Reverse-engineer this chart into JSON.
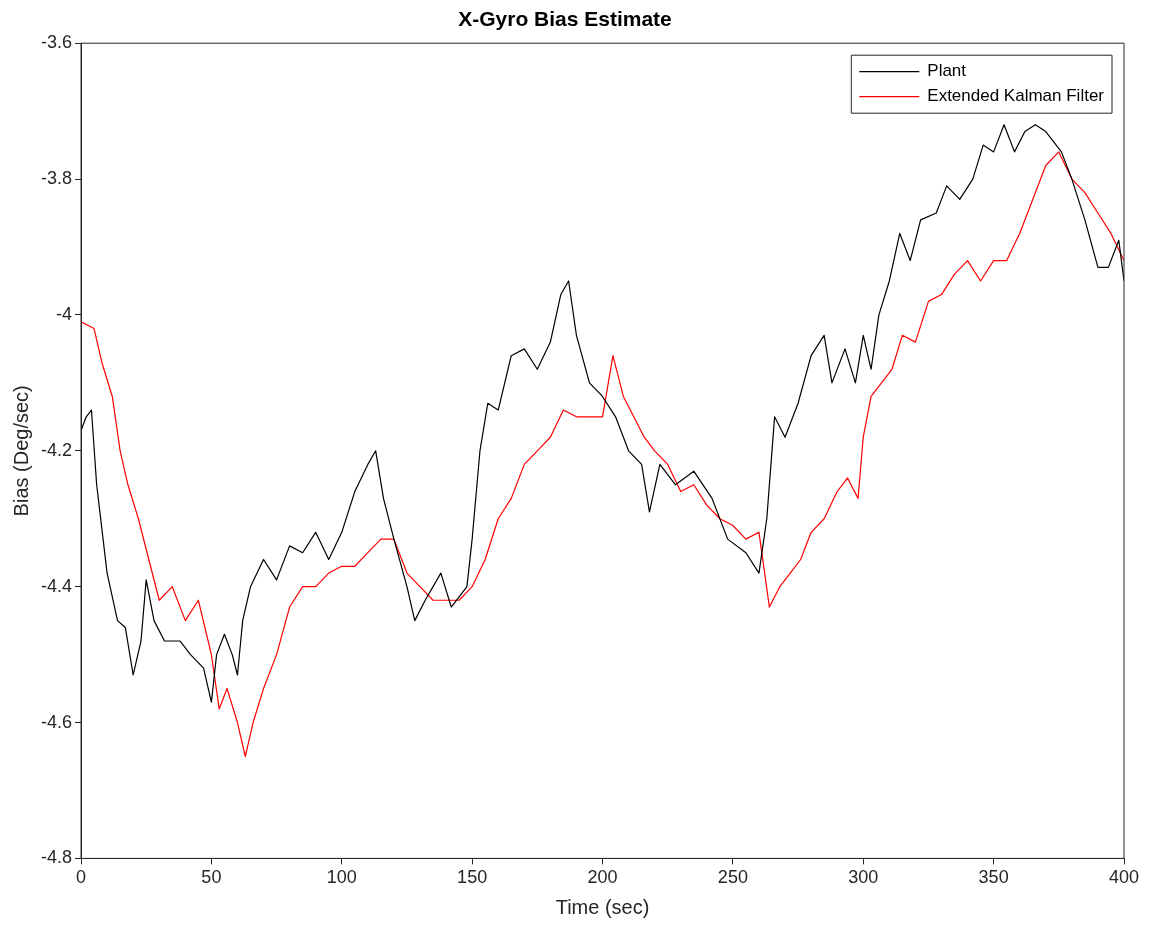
{
  "chart_data": {
    "type": "line",
    "title": "X-Gyro Bias Estimate",
    "xlabel": "Time (sec)",
    "ylabel": "Bias (Deg/sec)",
    "xlim": [
      0,
      400
    ],
    "xticks": [
      0,
      50,
      100,
      150,
      200,
      250,
      300,
      350,
      400
    ],
    "ylim": [
      -4.8,
      -3.6
    ],
    "yticks": [
      -4.8,
      -4.6,
      -4.4,
      -4.2,
      -4,
      -3.8,
      -3.6
    ],
    "grid": false,
    "legend": "top right",
    "marker": "none",
    "line_style": "solid",
    "series": [
      {
        "name": "Plant",
        "color": "#000000",
        "x": [
          0,
          2,
          4,
          6,
          10,
          14,
          17,
          20,
          23,
          25,
          28,
          32,
          38,
          42,
          47,
          50,
          52,
          55,
          58,
          60,
          62,
          65,
          70,
          75,
          80,
          85,
          90,
          95,
          100,
          105,
          110,
          113,
          116,
          120,
          125,
          128,
          132,
          138,
          142,
          148,
          150,
          153,
          156,
          160,
          165,
          170,
          175,
          180,
          184,
          187,
          190,
          195,
          200,
          205,
          210,
          215,
          218,
          222,
          228,
          235,
          242,
          248,
          255,
          260,
          263,
          266,
          270,
          275,
          280,
          285,
          288,
          293,
          297,
          300,
          303,
          306,
          310,
          314,
          318,
          322,
          328,
          332,
          337,
          342,
          346,
          350,
          354,
          358,
          362,
          366,
          370,
          376,
          380,
          385,
          390,
          394,
          398,
          400
        ],
        "values": [
          -4.17,
          -4.15,
          -4.14,
          -4.25,
          -4.38,
          -4.45,
          -4.46,
          -4.53,
          -4.48,
          -4.39,
          -4.45,
          -4.48,
          -4.48,
          -4.5,
          -4.52,
          -4.57,
          -4.5,
          -4.47,
          -4.5,
          -4.53,
          -4.45,
          -4.4,
          -4.36,
          -4.39,
          -4.34,
          -4.35,
          -4.32,
          -4.36,
          -4.32,
          -4.26,
          -4.22,
          -4.2,
          -4.27,
          -4.33,
          -4.4,
          -4.45,
          -4.42,
          -4.38,
          -4.43,
          -4.4,
          -4.33,
          -4.2,
          -4.13,
          -4.14,
          -4.06,
          -4.05,
          -4.08,
          -4.04,
          -3.97,
          -3.95,
          -4.03,
          -4.1,
          -4.12,
          -4.15,
          -4.2,
          -4.22,
          -4.29,
          -4.22,
          -4.25,
          -4.23,
          -4.27,
          -4.33,
          -4.35,
          -4.38,
          -4.3,
          -4.15,
          -4.18,
          -4.13,
          -4.06,
          -4.03,
          -4.1,
          -4.05,
          -4.1,
          -4.03,
          -4.08,
          -4,
          -3.95,
          -3.88,
          -3.92,
          -3.86,
          -3.85,
          -3.81,
          -3.83,
          -3.8,
          -3.75,
          -3.76,
          -3.72,
          -3.76,
          -3.73,
          -3.72,
          -3.73,
          -3.76,
          -3.8,
          -3.86,
          -3.93,
          -3.93,
          -3.89,
          -3.95
        ]
      },
      {
        "name": "Extended Kalman Filter",
        "color": "#ff0000",
        "x": [
          0,
          5,
          8,
          12,
          15,
          18,
          22,
          26,
          30,
          35,
          40,
          45,
          50,
          53,
          56,
          60,
          63,
          66,
          70,
          75,
          80,
          85,
          90,
          95,
          100,
          105,
          110,
          115,
          120,
          125,
          130,
          135,
          140,
          145,
          150,
          155,
          160,
          165,
          170,
          175,
          180,
          185,
          190,
          195,
          200,
          204,
          208,
          212,
          216,
          220,
          225,
          230,
          235,
          240,
          245,
          250,
          255,
          260,
          264,
          268,
          272,
          276,
          280,
          285,
          290,
          294,
          298,
          300,
          303,
          307,
          311,
          315,
          320,
          325,
          330,
          335,
          340,
          345,
          350,
          355,
          360,
          365,
          370,
          375,
          380,
          385,
          390,
          395,
          400
        ],
        "values": [
          -4.01,
          -4.02,
          -4.07,
          -4.12,
          -4.2,
          -4.25,
          -4.3,
          -4.36,
          -4.42,
          -4.4,
          -4.45,
          -4.42,
          -4.5,
          -4.58,
          -4.55,
          -4.6,
          -4.65,
          -4.6,
          -4.55,
          -4.5,
          -4.43,
          -4.4,
          -4.4,
          -4.38,
          -4.37,
          -4.37,
          -4.35,
          -4.33,
          -4.33,
          -4.38,
          -4.4,
          -4.42,
          -4.42,
          -4.42,
          -4.4,
          -4.36,
          -4.3,
          -4.27,
          -4.22,
          -4.2,
          -4.18,
          -4.14,
          -4.15,
          -4.15,
          -4.15,
          -4.06,
          -4.12,
          -4.15,
          -4.18,
          -4.2,
          -4.22,
          -4.26,
          -4.25,
          -4.28,
          -4.3,
          -4.31,
          -4.33,
          -4.32,
          -4.43,
          -4.4,
          -4.38,
          -4.36,
          -4.32,
          -4.3,
          -4.26,
          -4.24,
          -4.27,
          -4.18,
          -4.12,
          -4.1,
          -4.08,
          -4.03,
          -4.04,
          -3.98,
          -3.97,
          -3.94,
          -3.92,
          -3.95,
          -3.92,
          -3.92,
          -3.88,
          -3.83,
          -3.78,
          -3.76,
          -3.8,
          -3.82,
          -3.85,
          -3.88,
          -3.92
        ]
      }
    ]
  }
}
